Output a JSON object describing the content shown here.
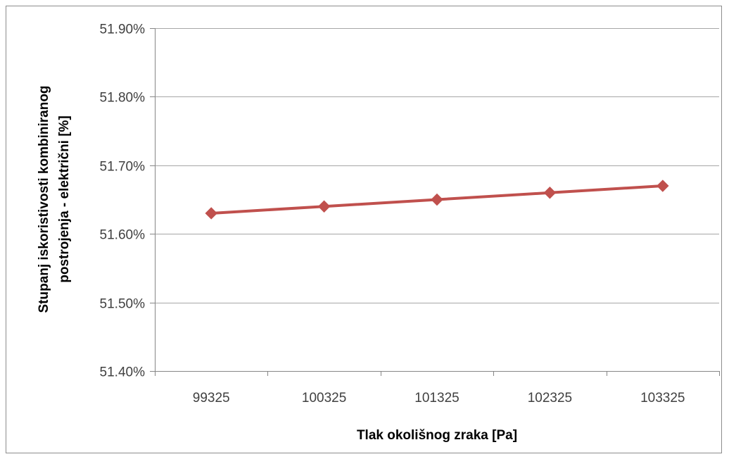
{
  "chart_data": {
    "type": "line",
    "title": "",
    "xlabel": "Tlak okolišnog zraka [Pa]",
    "ylabel": [
      "Stupanj iskoristivosti kombiniranog",
      "postrojenja - električni  [%]"
    ],
    "categories": [
      "99325",
      "100325",
      "101325",
      "102325",
      "103325"
    ],
    "series": [
      {
        "values": [
          51.63,
          51.64,
          51.65,
          51.66,
          51.67
        ]
      }
    ],
    "ylim": [
      51.4,
      51.9
    ],
    "yticks": [
      51.4,
      51.5,
      51.6,
      51.7,
      51.8,
      51.9
    ],
    "ytick_labels": [
      "51.40%",
      "51.50%",
      "51.60%",
      "51.70%",
      "51.80%",
      "51.90%"
    ],
    "grid": true,
    "legend": "none",
    "colors": {
      "series": "#c0504d",
      "grid": "#a6a6a6",
      "axis": "#868686"
    }
  }
}
